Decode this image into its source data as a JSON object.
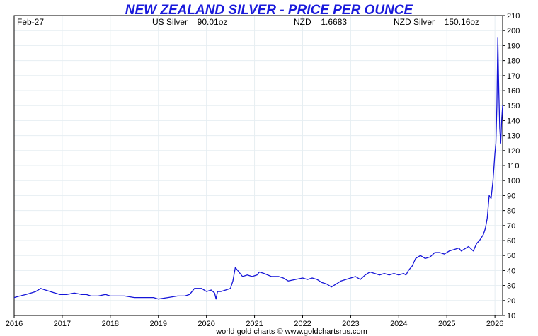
{
  "header": {
    "title": "NEW ZEALAND SILVER - PRICE PER OUNCE",
    "date": "Feb-27",
    "us_silver": "US Silver = 90.01oz",
    "nzd_rate": "NZD = 1.6683",
    "nzd_silver": "NZD Silver = 150.16oz"
  },
  "footer": {
    "credit": "world gold charts © www.goldchartsrus.com"
  },
  "colors": {
    "title": "#1a1adb",
    "line": "#1515d8",
    "grid": "#e6eef2"
  },
  "chart_data": {
    "type": "line",
    "title": "NEW ZEALAND SILVER - PRICE PER OUNCE",
    "xlabel": "",
    "ylabel": "",
    "xlim": [
      2016.0,
      2026.16
    ],
    "ylim": [
      10,
      210
    ],
    "y_ticks": [
      10,
      20,
      30,
      40,
      50,
      60,
      70,
      80,
      90,
      100,
      110,
      120,
      130,
      140,
      150,
      160,
      170,
      180,
      190,
      200,
      210
    ],
    "x_ticks": [
      "2016",
      "2017",
      "2018",
      "2019",
      "2020",
      "2021",
      "2022",
      "2023",
      "2024",
      "2025",
      "2026"
    ],
    "grid": true,
    "legend": "none",
    "series": [
      {
        "x": [
          2016.0,
          2016.12,
          2016.25,
          2016.35,
          2016.45,
          2016.55,
          2016.65,
          2016.75,
          2016.85,
          2016.95,
          2017.1,
          2017.25,
          2017.4,
          2017.5,
          2017.6,
          2017.75,
          2017.9,
          2018.0,
          2018.15,
          2018.3,
          2018.5,
          2018.7,
          2018.9,
          2019.0,
          2019.2,
          2019.4,
          2019.55,
          2019.65,
          2019.75,
          2019.9,
          2020.0,
          2020.1,
          2020.17,
          2020.2,
          2020.23,
          2020.3,
          2020.4,
          2020.5,
          2020.55,
          2020.6,
          2020.65,
          2020.7,
          2020.75,
          2020.85,
          2020.95,
          2021.05,
          2021.1,
          2021.2,
          2021.35,
          2021.5,
          2021.6,
          2021.7,
          2021.85,
          2022.0,
          2022.1,
          2022.2,
          2022.3,
          2022.4,
          2022.5,
          2022.6,
          2022.65,
          2022.7,
          2022.8,
          2022.9,
          2023.0,
          2023.1,
          2023.2,
          2023.3,
          2023.4,
          2023.5,
          2023.6,
          2023.7,
          2023.8,
          2023.9,
          2024.0,
          2024.1,
          2024.15,
          2024.2,
          2024.28,
          2024.35,
          2024.45,
          2024.55,
          2024.65,
          2024.75,
          2024.85,
          2024.95,
          2025.05,
          2025.15,
          2025.25,
          2025.3,
          2025.35,
          2025.45,
          2025.55,
          2025.62,
          2025.68,
          2025.72,
          2025.76,
          2025.8,
          2025.84,
          2025.88,
          2025.92,
          2025.96,
          2026.0,
          2026.02,
          2026.04,
          2026.06,
          2026.08,
          2026.1,
          2026.12,
          2026.14,
          2026.16
        ],
        "values": [
          22,
          23,
          24,
          25,
          26,
          28,
          27,
          26,
          25,
          24,
          24,
          25,
          24,
          24,
          23,
          23,
          24,
          23,
          23,
          23,
          22,
          22,
          22,
          21,
          22,
          23,
          23,
          24,
          28,
          28,
          26,
          27,
          25,
          21,
          26,
          26,
          27,
          28,
          33,
          42,
          40,
          38,
          36,
          37,
          36,
          37,
          39,
          38,
          36,
          36,
          35,
          33,
          34,
          35,
          34,
          35,
          34,
          32,
          31,
          29,
          30,
          31,
          33,
          34,
          35,
          36,
          34,
          37,
          39,
          38,
          37,
          38,
          37,
          38,
          37,
          38,
          37,
          40,
          43,
          48,
          50,
          48,
          49,
          52,
          52,
          51,
          53,
          54,
          55,
          53,
          54,
          56,
          53,
          58,
          60,
          62,
          64,
          68,
          75,
          90,
          88,
          100,
          118,
          125,
          150,
          195,
          160,
          135,
          125,
          140,
          150
        ]
      }
    ]
  }
}
